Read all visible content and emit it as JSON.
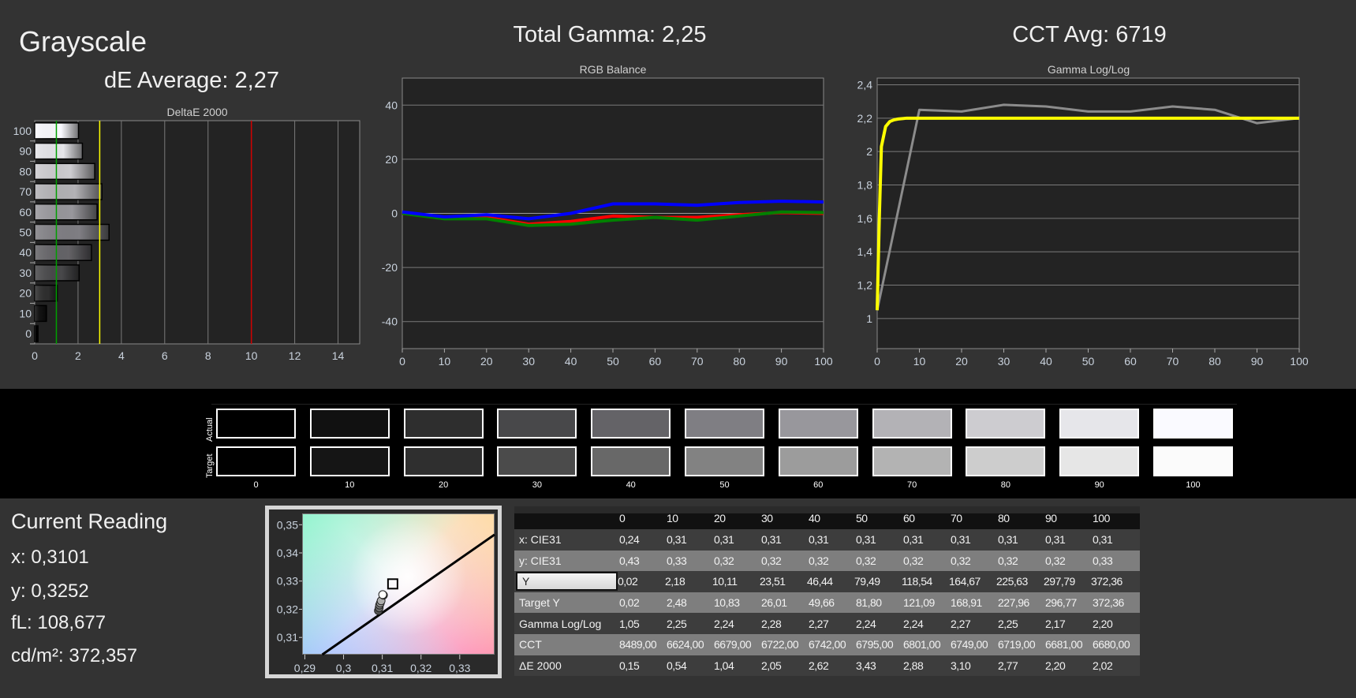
{
  "header": {
    "title": "Grayscale",
    "de_average": "dE Average: 2,27",
    "total_gamma": "Total Gamma: 2,25",
    "cct_avg": "CCT Avg: 6719"
  },
  "chart_data": [
    {
      "type": "bar",
      "title": "DeltaE 2000",
      "orientation": "horizontal",
      "categories": [
        "0",
        "10",
        "20",
        "30",
        "40",
        "50",
        "60",
        "70",
        "80",
        "90",
        "100"
      ],
      "values": [
        0.15,
        0.54,
        1.04,
        2.05,
        2.62,
        3.43,
        2.88,
        3.1,
        2.77,
        2.2,
        2.02
      ],
      "xlim": [
        0,
        15
      ],
      "xticks": [
        "0",
        "2",
        "4",
        "6",
        "8",
        "10",
        "12",
        "14"
      ],
      "xtick_values": [
        0,
        2,
        4,
        6,
        8,
        10,
        12,
        14
      ],
      "reference_lines": [
        {
          "value": 1,
          "color": "#00a000"
        },
        {
          "value": 3,
          "color": "#ffff00"
        },
        {
          "value": 10,
          "color": "#d00000"
        }
      ],
      "grid": true
    },
    {
      "type": "line",
      "title": "RGB Balance",
      "x": [
        0,
        10,
        20,
        30,
        40,
        50,
        60,
        70,
        80,
        90,
        100
      ],
      "series": [
        {
          "name": "Red",
          "color": "#ff0000",
          "values": [
            0,
            -1.5,
            -1.5,
            -4,
            -3,
            -1,
            -1.5,
            -1.5,
            -0.5,
            0.3,
            0
          ]
        },
        {
          "name": "Green",
          "color": "#008000",
          "values": [
            0,
            -2,
            -2,
            -4.5,
            -4,
            -2.5,
            -1.5,
            -2.5,
            -1,
            0.5,
            0.3
          ]
        },
        {
          "name": "Blue",
          "color": "#0000ff",
          "values": [
            0.5,
            -1.3,
            -0.5,
            -2,
            0,
            3.5,
            3.5,
            3,
            4,
            4.5,
            4.2
          ]
        }
      ],
      "ylim": [
        -50,
        50
      ],
      "yticks": [
        "40",
        "20",
        "0",
        "-20",
        "-40"
      ],
      "ytick_values": [
        40,
        20,
        0,
        -20,
        -40
      ],
      "xticks": [
        "0",
        "10",
        "20",
        "30",
        "40",
        "50",
        "60",
        "70",
        "80",
        "90",
        "100"
      ],
      "grid": true
    },
    {
      "type": "line",
      "title": "Gamma Log/Log",
      "series": [
        {
          "name": "Measured",
          "color": "#8c8c8c",
          "x": [
            0,
            10,
            20,
            30,
            40,
            50,
            60,
            70,
            80,
            90,
            100
          ],
          "values": [
            1.05,
            2.25,
            2.24,
            2.28,
            2.27,
            2.24,
            2.24,
            2.27,
            2.25,
            2.17,
            2.2
          ]
        },
        {
          "name": "Target",
          "color": "#ffff00",
          "x": [
            0,
            0.5,
            1,
            2,
            3,
            4,
            5,
            7,
            10,
            100
          ],
          "values": [
            1.05,
            1.6,
            2.03,
            2.15,
            2.18,
            2.19,
            2.195,
            2.2,
            2.2,
            2.2
          ]
        }
      ],
      "ylim": [
        0.82,
        2.44
      ],
      "yticks": [
        "2,4",
        "2,2",
        "2",
        "1,8",
        "1,6",
        "1,4",
        "1,2",
        "1"
      ],
      "ytick_values": [
        2.4,
        2.2,
        2.0,
        1.8,
        1.6,
        1.4,
        1.2,
        1.0
      ],
      "xticks": [
        "0",
        "10",
        "20",
        "30",
        "40",
        "50",
        "60",
        "70",
        "80",
        "90",
        "100"
      ],
      "grid": true
    },
    {
      "type": "scatter",
      "title": "CIE xy",
      "xlim": [
        0.2893,
        0.339
      ],
      "ylim": [
        0.3039,
        0.354
      ],
      "xticks": [
        "0,29",
        "0,3",
        "0,31",
        "0,32",
        "0,33"
      ],
      "xtick_values": [
        0.29,
        0.3,
        0.31,
        0.32,
        0.33
      ],
      "yticks": [
        "0,35",
        "0,34",
        "0,33",
        "0,32",
        "0,31"
      ],
      "ytick_values": [
        0.35,
        0.34,
        0.33,
        0.32,
        0.31
      ],
      "points": [
        {
          "x": 0.309,
          "y": 0.3195,
          "shade": "#555555"
        },
        {
          "x": 0.3092,
          "y": 0.3205,
          "shade": "#6a6a6a"
        },
        {
          "x": 0.3093,
          "y": 0.3215,
          "shade": "#808080"
        },
        {
          "x": 0.3095,
          "y": 0.3222,
          "shade": "#969696"
        },
        {
          "x": 0.3097,
          "y": 0.323,
          "shade": "#acacac"
        },
        {
          "x": 0.3103,
          "y": 0.325,
          "shade": "#333333"
        },
        {
          "x": 0.3101,
          "y": 0.3252,
          "shade": "#ffffff"
        }
      ],
      "target": {
        "x": 0.3127,
        "y": 0.329
      },
      "locus": [
        [
          0.2945,
          0.3039
        ],
        [
          0.339,
          0.3465
        ]
      ]
    }
  ],
  "swatches": {
    "actual_label": "Actual",
    "target_label": "Target",
    "levels": [
      "0",
      "10",
      "20",
      "30",
      "40",
      "50",
      "60",
      "70",
      "80",
      "90",
      "100"
    ],
    "actual_colors": [
      "#000000",
      "#111111",
      "#2e2e2e",
      "#48484a",
      "#646367",
      "#7f7e83",
      "#98979c",
      "#b3b2b6",
      "#cdccd0",
      "#e6e6ea",
      "#fafaff"
    ],
    "target_colors": [
      "#000000",
      "#151515",
      "#2f2f2f",
      "#4b4b4b",
      "#686868",
      "#828282",
      "#9c9c9c",
      "#b3b3b3",
      "#cdcdcd",
      "#e6e6e6",
      "#fbfbfb"
    ]
  },
  "current_reading": {
    "title": "Current Reading",
    "x": "x: 0,3101",
    "y": "y: 0,3252",
    "fl": "fL: 108,677",
    "cdm2": "cd/m²: 372,357"
  },
  "table": {
    "columns": [
      "0",
      "10",
      "20",
      "30",
      "40",
      "50",
      "60",
      "70",
      "80",
      "90",
      "100"
    ],
    "rows": [
      {
        "label": "x: CIE31",
        "values": [
          "0,24",
          "0,31",
          "0,31",
          "0,31",
          "0,31",
          "0,31",
          "0,31",
          "0,31",
          "0,31",
          "0,31",
          "0,31"
        ]
      },
      {
        "label": "y: CIE31",
        "values": [
          "0,43",
          "0,33",
          "0,32",
          "0,32",
          "0,32",
          "0,32",
          "0,32",
          "0,32",
          "0,32",
          "0,32",
          "0,33"
        ]
      },
      {
        "label": "Y",
        "selected": true,
        "values": [
          "0,02",
          "2,18",
          "10,11",
          "23,51",
          "46,44",
          "79,49",
          "118,54",
          "164,67",
          "225,63",
          "297,79",
          "372,36"
        ]
      },
      {
        "label": "Target Y",
        "values": [
          "0,02",
          "2,48",
          "10,83",
          "26,01",
          "49,66",
          "81,80",
          "121,09",
          "168,91",
          "227,96",
          "296,77",
          "372,36"
        ]
      },
      {
        "label": "Gamma Log/Log",
        "values": [
          "1,05",
          "2,25",
          "2,24",
          "2,28",
          "2,27",
          "2,24",
          "2,24",
          "2,27",
          "2,25",
          "2,17",
          "2,20"
        ]
      },
      {
        "label": "CCT",
        "values": [
          "8489,00",
          "6624,00",
          "6679,00",
          "6722,00",
          "6742,00",
          "6795,00",
          "6801,00",
          "6749,00",
          "6719,00",
          "6681,00",
          "6680,00"
        ]
      },
      {
        "label": "ΔE 2000",
        "values": [
          "0,15",
          "0,54",
          "1,04",
          "2,05",
          "2,62",
          "3,43",
          "2,88",
          "3,10",
          "2,77",
          "2,20",
          "2,02"
        ]
      }
    ]
  }
}
